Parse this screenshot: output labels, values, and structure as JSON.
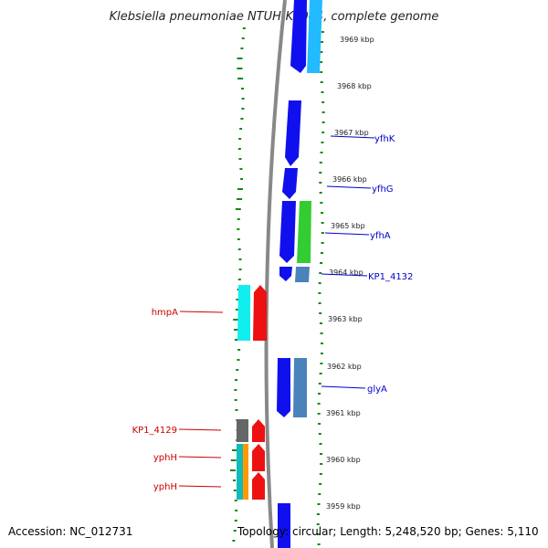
{
  "title": "Klebsiella pneumoniae NTUH-K2044, complete genome",
  "footer": {
    "accession": "Accession: NC_012731",
    "topology": "Topology: circular; Length: 5,248,520 bp; Genes: 5,110"
  },
  "ticks": [
    {
      "label": "3969 kbp"
    },
    {
      "label": "3968 kbp"
    },
    {
      "label": "3967 kbp"
    },
    {
      "label": "3966 kbp"
    },
    {
      "label": "3965 kbp"
    },
    {
      "label": "3964 kbp"
    },
    {
      "label": "3963 kbp"
    },
    {
      "label": "3962 kbp"
    },
    {
      "label": "3961 kbp"
    },
    {
      "label": "3960 kbp"
    },
    {
      "label": "3959 kbp"
    }
  ],
  "gene_labels_right": [
    {
      "name": "yfhK"
    },
    {
      "name": "yfhG"
    },
    {
      "name": "yfhA"
    },
    {
      "name": "KP1_4132"
    },
    {
      "name": "glyA"
    }
  ],
  "gene_labels_left": [
    {
      "name": "hmpA"
    },
    {
      "name": "KP1_4129"
    },
    {
      "name": "yphH"
    },
    {
      "name": "yphH"
    }
  ],
  "colors": {
    "forward_label": "#0000cc",
    "reverse_label": "#cc0000",
    "gene_blue": "#1010ee",
    "gene_skyblue": "#22bbff",
    "gene_green": "#33cc33",
    "gene_steelblue": "#4a82bb",
    "gene_cyan": "#11eeee",
    "gene_red": "#ee1111",
    "gene_gray": "#666666",
    "gene_orange": "#ff9900",
    "gene_teal": "#11bbbb",
    "gc_ticks": "#118811",
    "backbone": "#888888"
  }
}
